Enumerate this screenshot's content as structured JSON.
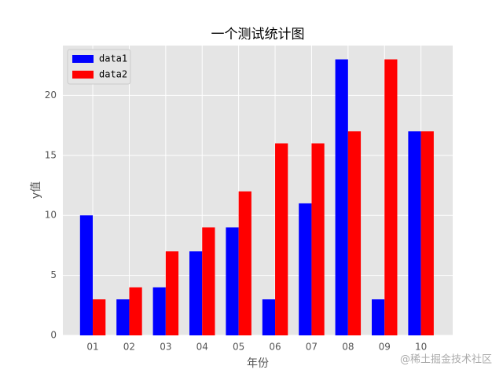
{
  "chart_data": {
    "type": "bar",
    "title": "一个测试统计图",
    "x_label": "年份",
    "y_label": "y值",
    "categories": [
      "01",
      "02",
      "03",
      "04",
      "05",
      "06",
      "07",
      "08",
      "09",
      "10"
    ],
    "series": [
      {
        "name": "data1",
        "color": "#0000ff",
        "values": [
          10,
          3,
          4,
          7,
          9,
          3,
          11,
          23,
          3,
          17
        ]
      },
      {
        "name": "data2",
        "color": "#ff0000",
        "values": [
          3,
          4,
          7,
          9,
          12,
          16,
          16,
          17,
          23,
          17
        ]
      }
    ],
    "ylim": [
      0,
      24.15
    ],
    "yticks": [
      0,
      5,
      10,
      15,
      20
    ],
    "grid": true,
    "legend": "upper left"
  },
  "watermark": "@稀土掘金技术社区"
}
